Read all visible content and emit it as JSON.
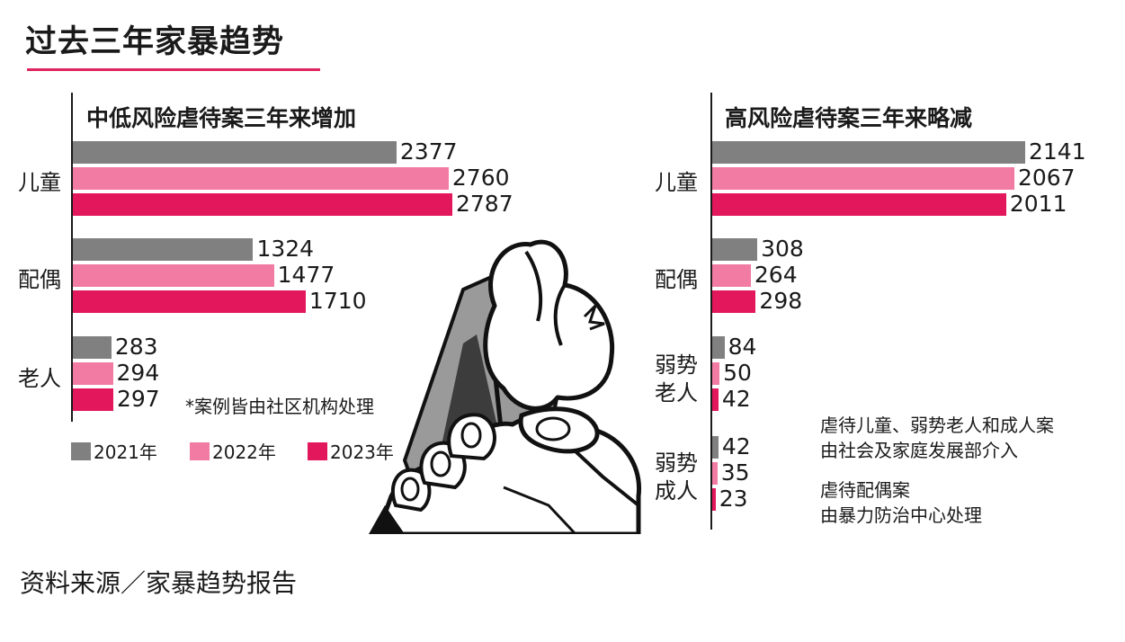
{
  "title": "过去三年家暴趋势",
  "source": "资料来源／家暴趋势报告",
  "colors": {
    "y2021": "#808080",
    "y2022": "#f27ba4",
    "y2023": "#e3175c",
    "accent": "#e0255e"
  },
  "legend": [
    "2021年",
    "2022年",
    "2023年"
  ],
  "footnote": "*案例皆由社区机构处理",
  "notes": {
    "line1": "虐待儿童、弱势老人和成人案",
    "line2": "由社会及家庭发展部介入",
    "line3": "虐待配偶案",
    "line4": "由暴力防治中心处理"
  },
  "illustration": "wrist-grab-illustration",
  "chart_data": [
    {
      "type": "bar",
      "orientation": "horizontal",
      "title": "中低风险虐待案三年来增加",
      "categories": [
        "儿童",
        "配偶",
        "老人"
      ],
      "series": [
        {
          "name": "2021年",
          "values": [
            2377,
            1324,
            283
          ]
        },
        {
          "name": "2022年",
          "values": [
            2760,
            1477,
            294
          ]
        },
        {
          "name": "2023年",
          "values": [
            2787,
            1710,
            297
          ]
        }
      ]
    },
    {
      "type": "bar",
      "orientation": "horizontal",
      "title": "高风险虐待案三年来略减",
      "categories": [
        "儿童",
        "配偶",
        "弱势老人",
        "弱势成人"
      ],
      "series": [
        {
          "name": "2021年",
          "values": [
            2141,
            308,
            84,
            42
          ]
        },
        {
          "name": "2022年",
          "values": [
            2067,
            264,
            50,
            35
          ]
        },
        {
          "name": "2023年",
          "values": [
            2011,
            298,
            42,
            23
          ]
        }
      ]
    }
  ]
}
